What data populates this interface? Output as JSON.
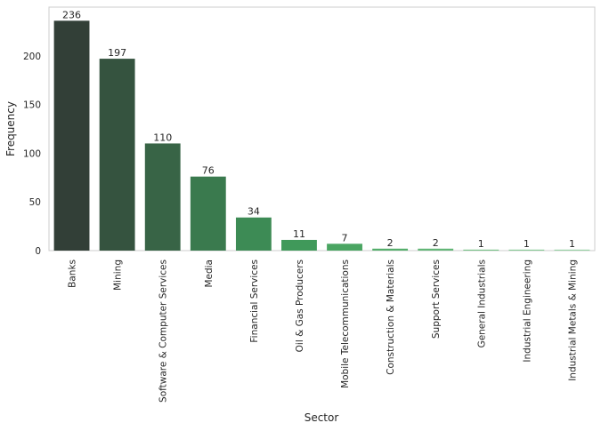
{
  "chart_data": {
    "type": "bar",
    "xlabel": "Sector",
    "ylabel": "Frequency",
    "categories": [
      "Banks",
      "Mining",
      "Software & Computer Services",
      "Media",
      "Financial Services",
      "Oil & Gas Producers",
      "Mobile Telecommunications",
      "Construction & Materials",
      "Support Services",
      "General Industrials",
      "Industrial Engineering",
      "Industrial Metals & Mining"
    ],
    "values": [
      236,
      197,
      110,
      76,
      34,
      11,
      7,
      2,
      2,
      1,
      1,
      1
    ],
    "colors": [
      "#323f37",
      "#35533f",
      "#386446",
      "#3a7a4e",
      "#3d8b55",
      "#40995a",
      "#4aa562",
      "#55ae6c",
      "#63b677",
      "#72bf83",
      "#82c792",
      "#93cfa0"
    ],
    "ylim": [
      0,
      250
    ],
    "yticks": [
      0,
      50,
      100,
      150,
      200
    ],
    "grid": false
  }
}
